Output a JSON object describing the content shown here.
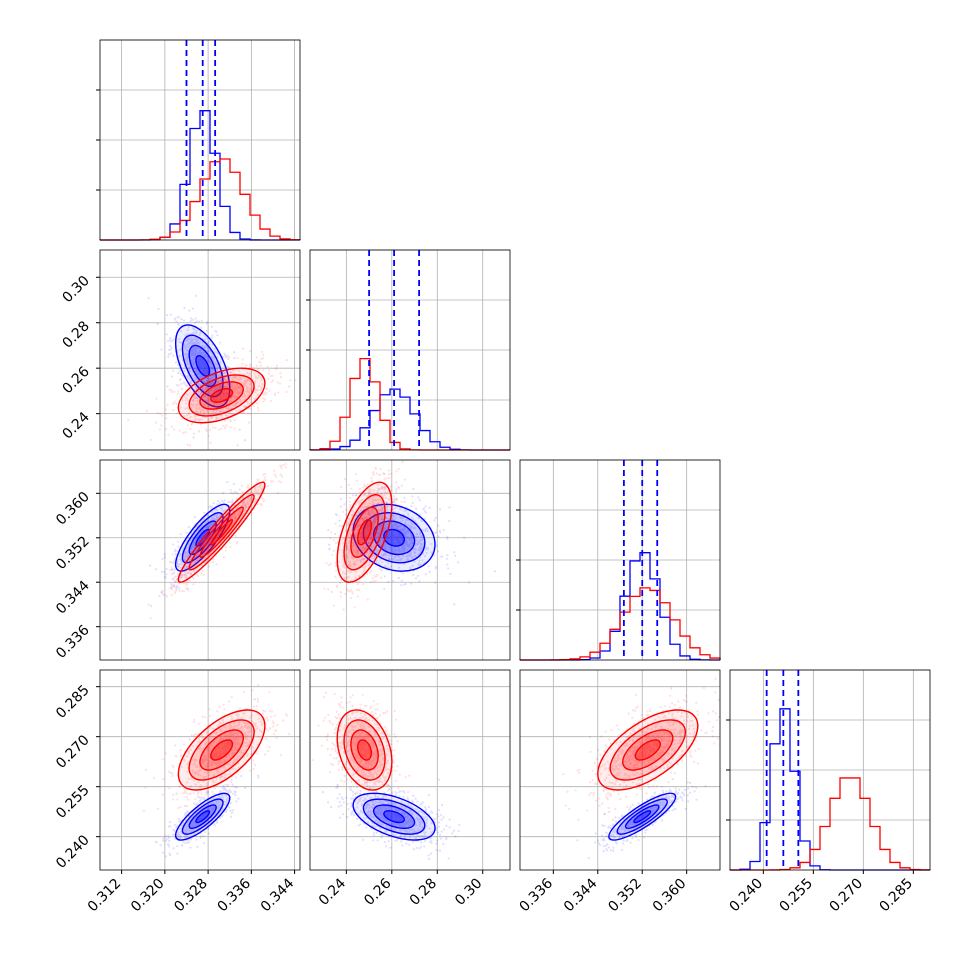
{
  "colors": {
    "series_a": "#0000ff",
    "series_b": "#ff0000",
    "grid": "#b0b0b0",
    "frame": "#000000"
  },
  "chart_data": {
    "type": "corner",
    "grid": true,
    "series": [
      {
        "color": "#0000ff",
        "mean": [
          0.327,
          0.261,
          0.352,
          0.246
        ],
        "sd": [
          0.0025,
          0.009,
          0.003,
          0.0035
        ],
        "corr": [
          [
            1,
            -0.55,
            0.8,
            0.8
          ],
          [
            -0.55,
            1,
            -0.2,
            -0.5
          ],
          [
            0.8,
            -0.2,
            1,
            0.85
          ],
          [
            0.8,
            -0.5,
            0.85,
            1
          ]
        ],
        "quantiles": [
          [
            0.324,
            0.327,
            0.3293
          ],
          [
            0.25,
            0.261,
            0.272
          ],
          [
            0.3487,
            0.352,
            0.3547
          ],
          [
            0.241,
            0.246,
            0.2505
          ]
        ]
      },
      {
        "color": "#ff0000",
        "mean": [
          0.3305,
          0.248,
          0.353,
          0.266
        ],
        "sd": [
          0.004,
          0.006,
          0.0045,
          0.006
        ],
        "corr": [
          [
            1,
            0.45,
            0.95,
            0.6
          ],
          [
            0.45,
            1,
            0.55,
            -0.3
          ],
          [
            0.95,
            0.55,
            1,
            0.6
          ],
          [
            0.6,
            -0.3,
            0.6,
            1
          ]
        ],
        "quantiles": []
      }
    ],
    "axes": [
      {
        "range": [
          0.308,
          0.345
        ],
        "ticks": [
          0.312,
          0.32,
          0.328,
          0.336,
          0.344
        ],
        "tick_labels": [
          "0.312",
          "0.320",
          "0.328",
          "0.336",
          "0.344"
        ],
        "hist_max": 0.45
      },
      {
        "range": [
          0.224,
          0.312
        ],
        "ticks": [
          0.24,
          0.26,
          0.28,
          0.3
        ],
        "tick_labels": [
          "0.24",
          "0.26",
          "0.28",
          "0.30"
        ],
        "hist_max": 0.64
      },
      {
        "range": [
          0.33,
          0.366
        ],
        "ticks": [
          0.336,
          0.344,
          0.352,
          0.36
        ],
        "tick_labels": [
          "0.336",
          "0.344",
          "0.352",
          "0.360"
        ],
        "hist_max": 0.44
      },
      {
        "range": [
          0.23,
          0.29
        ],
        "ticks": [
          0.24,
          0.255,
          0.27,
          0.285
        ],
        "tick_labels": [
          "0.240",
          "0.255",
          "0.270",
          "0.285"
        ],
        "hist_max": 0.42
      }
    ]
  }
}
